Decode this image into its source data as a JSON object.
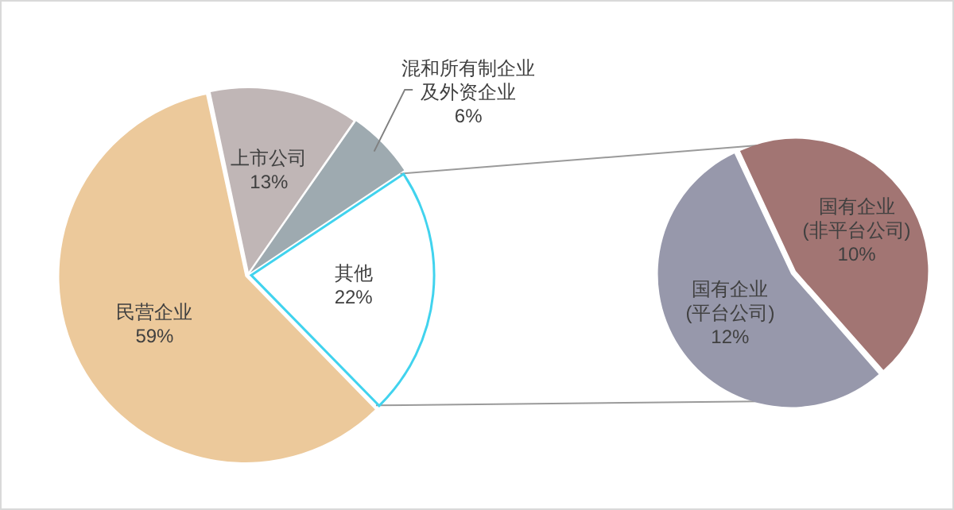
{
  "chart_data": [
    {
      "type": "pie",
      "categories": [
        "上市公司",
        "混和所有制企业及外资企业",
        "其他",
        "民营企业"
      ],
      "values": [
        13,
        6,
        22,
        59
      ],
      "colors": [
        "#c0b6b6",
        "#9eaab0",
        "#ffffff",
        "#ecc99b"
      ],
      "value_labels": [
        "13%",
        "6%",
        "22%",
        "59%"
      ]
    },
    {
      "type": "pie",
      "categories": [
        "国有企业(非平台公司)",
        "国有企业(平台公司)"
      ],
      "values": [
        10,
        12
      ],
      "colors": [
        "#a27573",
        "#9798ab"
      ],
      "value_labels": [
        "10%",
        "12%"
      ]
    }
  ]
}
